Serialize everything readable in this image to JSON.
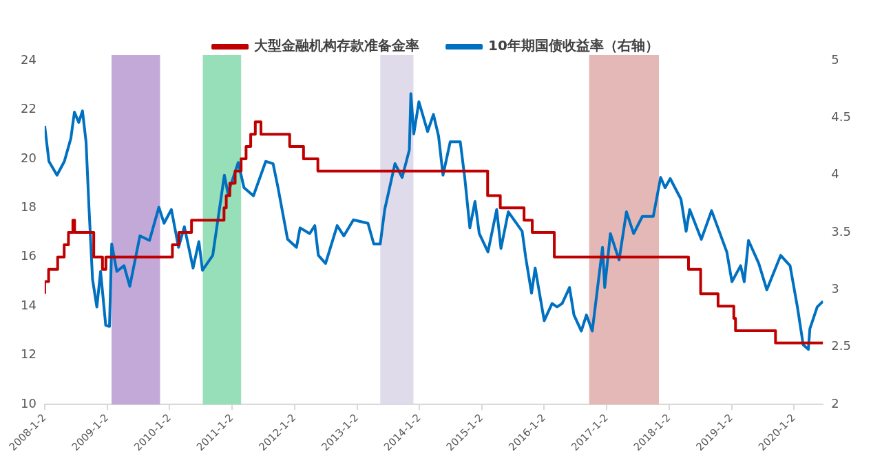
{
  "chart_data": {
    "type": "line",
    "legend": "top",
    "grid": false,
    "xlim": [
      "2008-01-02",
      "2020-06-20"
    ],
    "xticks": [
      {
        "value": "2008-01-02",
        "label": "2008-1-2"
      },
      {
        "value": "2009-01-02",
        "label": "2009-1-2"
      },
      {
        "value": "2010-01-02",
        "label": "2010-1-2"
      },
      {
        "value": "2011-01-02",
        "label": "2011-1-2"
      },
      {
        "value": "2012-01-02",
        "label": "2012-1-2"
      },
      {
        "value": "2013-01-02",
        "label": "2013-1-2"
      },
      {
        "value": "2014-01-02",
        "label": "2014-1-2"
      },
      {
        "value": "2015-01-02",
        "label": "2015-1-2"
      },
      {
        "value": "2016-01-02",
        "label": "2016-1-2"
      },
      {
        "value": "2017-01-02",
        "label": "2017-1-2"
      },
      {
        "value": "2018-01-02",
        "label": "2018-1-2"
      },
      {
        "value": "2019-01-02",
        "label": "2019-1-2"
      },
      {
        "value": "2020-01-02",
        "label": "2020-1-2"
      }
    ],
    "ylim": [
      10,
      24
    ],
    "yticks": [
      10,
      12,
      14,
      16,
      18,
      20,
      22,
      24
    ],
    "y2lim": [
      2,
      5
    ],
    "y2ticks": [
      2,
      2.5,
      3,
      3.5,
      4,
      4.5,
      5
    ],
    "bands": [
      {
        "axis": "x",
        "from": "2009-01-27",
        "to": "2009-11-07",
        "color": "#c3a9d8"
      },
      {
        "axis": "x",
        "from": "2010-07-15",
        "to": "2011-02-24",
        "color": "#96dfb8"
      },
      {
        "axis": "x",
        "from": "2013-05-18",
        "to": "2013-11-28",
        "color": "#e0dbea"
      },
      {
        "axis": "x",
        "from": "2016-09-21",
        "to": "2017-11-03",
        "color": "#e5b8b8"
      }
    ],
    "series": [
      {
        "name": "大型金融机构存款准备金率",
        "type": "step",
        "color": "#c00000",
        "x": [
          "2008-01-02",
          "2008-01-25",
          "2008-03-18",
          "2008-04-25",
          "2008-05-20",
          "2008-06-15",
          "2008-06-25",
          "2008-10-15",
          "2008-12-05",
          "2008-12-25",
          "2010-01-18",
          "2010-02-25",
          "2010-05-10",
          "2010-11-16",
          "2010-11-29",
          "2010-12-20",
          "2011-01-20",
          "2011-02-24",
          "2011-03-25",
          "2011-04-21",
          "2011-05-18",
          "2011-06-20",
          "2011-12-05",
          "2012-02-24",
          "2012-05-18",
          "2015-02-05",
          "2015-04-20",
          "2015-09-06",
          "2015-10-24",
          "2016-03-01",
          "2018-04-25",
          "2018-07-05",
          "2018-10-15",
          "2019-01-15",
          "2019-01-25",
          "2019-09-16",
          "2020-01-06",
          "2020-06-20"
        ],
        "values": [
          14.5,
          15,
          15.5,
          16,
          16.5,
          17,
          17.5,
          17,
          16,
          15.5,
          16,
          16.5,
          17,
          17.5,
          18,
          18.5,
          19,
          19.5,
          20,
          20.5,
          21,
          21.5,
          21,
          20.5,
          20,
          19.5,
          18.5,
          18,
          17.5,
          17,
          16,
          15.5,
          14.5,
          14,
          13.5,
          13,
          12.5,
          12.5
        ]
      },
      {
        "name": "10年期国债收益率（右轴）",
        "type": "line",
        "axis": "y2",
        "color": "#0070c0",
        "x": [
          "2008-01-02",
          "2008-01-27",
          "2008-03-14",
          "2008-04-26",
          "2008-06-03",
          "2008-06-24",
          "2008-07-19",
          "2008-08-10",
          "2008-08-31",
          "2008-09-17",
          "2008-10-08",
          "2008-11-02",
          "2008-11-24",
          "2008-12-24",
          "2009-01-15",
          "2009-01-28",
          "2009-02-27",
          "2009-04-10",
          "2009-05-14",
          "2009-07-12",
          "2009-09-06",
          "2009-10-31",
          "2009-11-30",
          "2010-01-12",
          "2010-02-23",
          "2010-03-29",
          "2010-05-19",
          "2010-06-22",
          "2010-07-13",
          "2010-09-11",
          "2010-11-18",
          "2010-12-09",
          "2011-02-07",
          "2011-03-13",
          "2011-05-07",
          "2011-07-18",
          "2011-08-30",
          "2011-09-28",
          "2011-11-23",
          "2012-01-14",
          "2012-02-04",
          "2012-03-31",
          "2012-04-30",
          "2012-05-21",
          "2012-07-02",
          "2012-09-08",
          "2012-10-17",
          "2012-12-12",
          "2013-03-07",
          "2013-04-10",
          "2013-05-18",
          "2013-06-13",
          "2013-08-12",
          "2013-09-23",
          "2013-11-04",
          "2013-11-13",
          "2013-11-30",
          "2013-12-30",
          "2014-02-19",
          "2014-03-25",
          "2014-04-24",
          "2014-05-20",
          "2014-07-01",
          "2014-08-29",
          "2014-09-24",
          "2014-10-24",
          "2014-11-23",
          "2014-12-18",
          "2015-02-07",
          "2015-03-30",
          "2015-04-24",
          "2015-06-06",
          "2015-08-26",
          "2015-09-16",
          "2015-10-20",
          "2015-11-10",
          "2016-01-02",
          "2016-02-17",
          "2016-03-17",
          "2016-04-16",
          "2016-05-29",
          "2016-06-24",
          "2016-08-06",
          "2016-09-05",
          "2016-10-09",
          "2016-12-08",
          "2016-12-21",
          "2017-01-23",
          "2017-03-15",
          "2017-04-27",
          "2017-06-08",
          "2017-07-29",
          "2017-10-01",
          "2017-11-13",
          "2017-12-09",
          "2018-01-08",
          "2018-03-12",
          "2018-04-11",
          "2018-05-02",
          "2018-07-09",
          "2018-09-07",
          "2018-12-05",
          "2019-01-04",
          "2019-02-24",
          "2019-03-17",
          "2019-04-11",
          "2019-06-10",
          "2019-07-27",
          "2019-10-16",
          "2019-12-10",
          "2020-01-22",
          "2020-02-25",
          "2020-03-26",
          "2020-04-04",
          "2020-05-17",
          "2020-06-20"
        ],
        "values": [
          4.43,
          4.12,
          4.0,
          4.12,
          4.32,
          4.55,
          4.46,
          4.56,
          4.29,
          3.72,
          3.09,
          2.85,
          3.16,
          2.69,
          2.68,
          3.4,
          3.16,
          3.21,
          3.03,
          3.47,
          3.43,
          3.72,
          3.58,
          3.7,
          3.37,
          3.55,
          3.19,
          3.42,
          3.17,
          3.3,
          4.0,
          3.84,
          4.11,
          3.89,
          3.82,
          4.12,
          4.1,
          3.89,
          3.44,
          3.37,
          3.54,
          3.49,
          3.56,
          3.3,
          3.23,
          3.56,
          3.47,
          3.61,
          3.58,
          3.4,
          3.4,
          3.7,
          4.1,
          3.98,
          4.22,
          4.71,
          4.36,
          4.64,
          4.38,
          4.53,
          4.34,
          4.0,
          4.29,
          4.29,
          3.98,
          3.54,
          3.77,
          3.49,
          3.33,
          3.7,
          3.36,
          3.68,
          3.51,
          3.28,
          2.97,
          3.19,
          2.73,
          2.88,
          2.85,
          2.88,
          3.02,
          2.78,
          2.64,
          2.78,
          2.64,
          3.37,
          3.02,
          3.49,
          3.26,
          3.68,
          3.49,
          3.64,
          3.64,
          3.98,
          3.89,
          3.97,
          3.79,
          3.51,
          3.7,
          3.44,
          3.69,
          3.33,
          3.07,
          3.21,
          3.07,
          3.43,
          3.23,
          3.0,
          3.3,
          3.21,
          2.85,
          2.52,
          2.48,
          2.66,
          2.85,
          2.9
        ]
      }
    ]
  }
}
